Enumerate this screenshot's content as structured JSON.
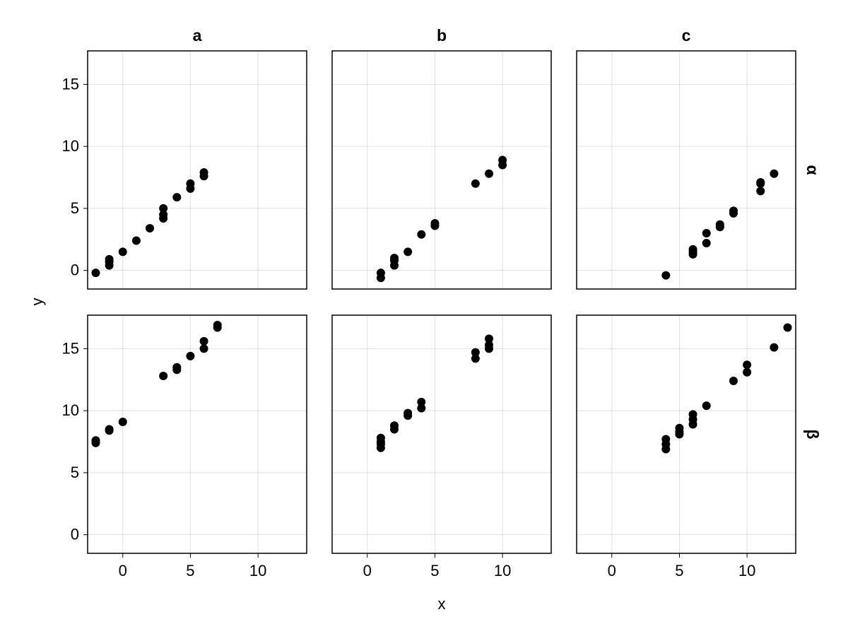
{
  "chart_data": {
    "type": "scatter",
    "layout": "facet-grid",
    "xlabel": "x",
    "ylabel": "y",
    "xlim": [
      -2.6,
      13.6
    ],
    "ylim": [
      -1.5,
      17.7
    ],
    "xticks": [
      0,
      5,
      10
    ],
    "yticks": [
      0,
      5,
      10,
      15
    ],
    "x_tick_labels": [
      "0",
      "5",
      "10"
    ],
    "y_tick_labels": [
      "0",
      "5",
      "10",
      "15"
    ],
    "grid": true,
    "col_labels": [
      "a",
      "b",
      "c"
    ],
    "row_labels": [
      "α",
      "β"
    ],
    "marker_color": "#000000",
    "panels": [
      {
        "row": "α",
        "col": "a",
        "points": [
          [
            -2,
            -0.2
          ],
          [
            -1,
            0.4
          ],
          [
            -1,
            0.7
          ],
          [
            -1,
            0.9
          ],
          [
            0,
            1.5
          ],
          [
            1,
            2.4
          ],
          [
            2,
            3.4
          ],
          [
            3,
            4.2
          ],
          [
            3,
            4.5
          ],
          [
            3,
            5.0
          ],
          [
            4,
            5.9
          ],
          [
            5,
            6.6
          ],
          [
            5,
            7.0
          ],
          [
            6,
            7.6
          ],
          [
            6,
            7.9
          ]
        ]
      },
      {
        "row": "α",
        "col": "b",
        "points": [
          [
            1,
            -0.6
          ],
          [
            1,
            -0.2
          ],
          [
            2,
            0.4
          ],
          [
            2,
            0.8
          ],
          [
            2,
            1.0
          ],
          [
            3,
            1.5
          ],
          [
            4,
            2.9
          ],
          [
            5,
            3.6
          ],
          [
            5,
            3.8
          ],
          [
            8,
            7.0
          ],
          [
            9,
            7.8
          ],
          [
            10,
            8.5
          ],
          [
            10,
            8.9
          ]
        ]
      },
      {
        "row": "α",
        "col": "c",
        "points": [
          [
            4,
            -0.4
          ],
          [
            6,
            1.3
          ],
          [
            6,
            1.5
          ],
          [
            6,
            1.7
          ],
          [
            7,
            2.2
          ],
          [
            7,
            3.0
          ],
          [
            8,
            3.5
          ],
          [
            8,
            3.7
          ],
          [
            9,
            4.6
          ],
          [
            9,
            4.8
          ],
          [
            11,
            6.4
          ],
          [
            11,
            7.0
          ],
          [
            11,
            7.1
          ],
          [
            12,
            7.8
          ]
        ]
      },
      {
        "row": "β",
        "col": "a",
        "points": [
          [
            -2,
            7.4
          ],
          [
            -2,
            7.6
          ],
          [
            -1,
            8.4
          ],
          [
            -1,
            8.5
          ],
          [
            0,
            9.1
          ],
          [
            3,
            12.8
          ],
          [
            4,
            13.3
          ],
          [
            4,
            13.5
          ],
          [
            5,
            14.4
          ],
          [
            6,
            15.0
          ],
          [
            6,
            15.6
          ],
          [
            7,
            16.7
          ],
          [
            7,
            16.9
          ]
        ]
      },
      {
        "row": "β",
        "col": "b",
        "points": [
          [
            1,
            7.0
          ],
          [
            1,
            7.3
          ],
          [
            1,
            7.5
          ],
          [
            1,
            7.8
          ],
          [
            2,
            8.5
          ],
          [
            2,
            8.8
          ],
          [
            3,
            9.6
          ],
          [
            3,
            9.8
          ],
          [
            4,
            10.2
          ],
          [
            4,
            10.7
          ],
          [
            8,
            14.2
          ],
          [
            8,
            14.7
          ],
          [
            9,
            15.0
          ],
          [
            9,
            15.3
          ],
          [
            9,
            15.8
          ]
        ]
      },
      {
        "row": "β",
        "col": "c",
        "points": [
          [
            4,
            6.9
          ],
          [
            4,
            7.3
          ],
          [
            4,
            7.7
          ],
          [
            5,
            8.1
          ],
          [
            5,
            8.3
          ],
          [
            5,
            8.6
          ],
          [
            6,
            8.9
          ],
          [
            6,
            9.3
          ],
          [
            6,
            9.7
          ],
          [
            7,
            10.4
          ],
          [
            9,
            12.4
          ],
          [
            10,
            13.1
          ],
          [
            10,
            13.7
          ],
          [
            12,
            15.1
          ],
          [
            13,
            16.7
          ]
        ]
      }
    ]
  }
}
